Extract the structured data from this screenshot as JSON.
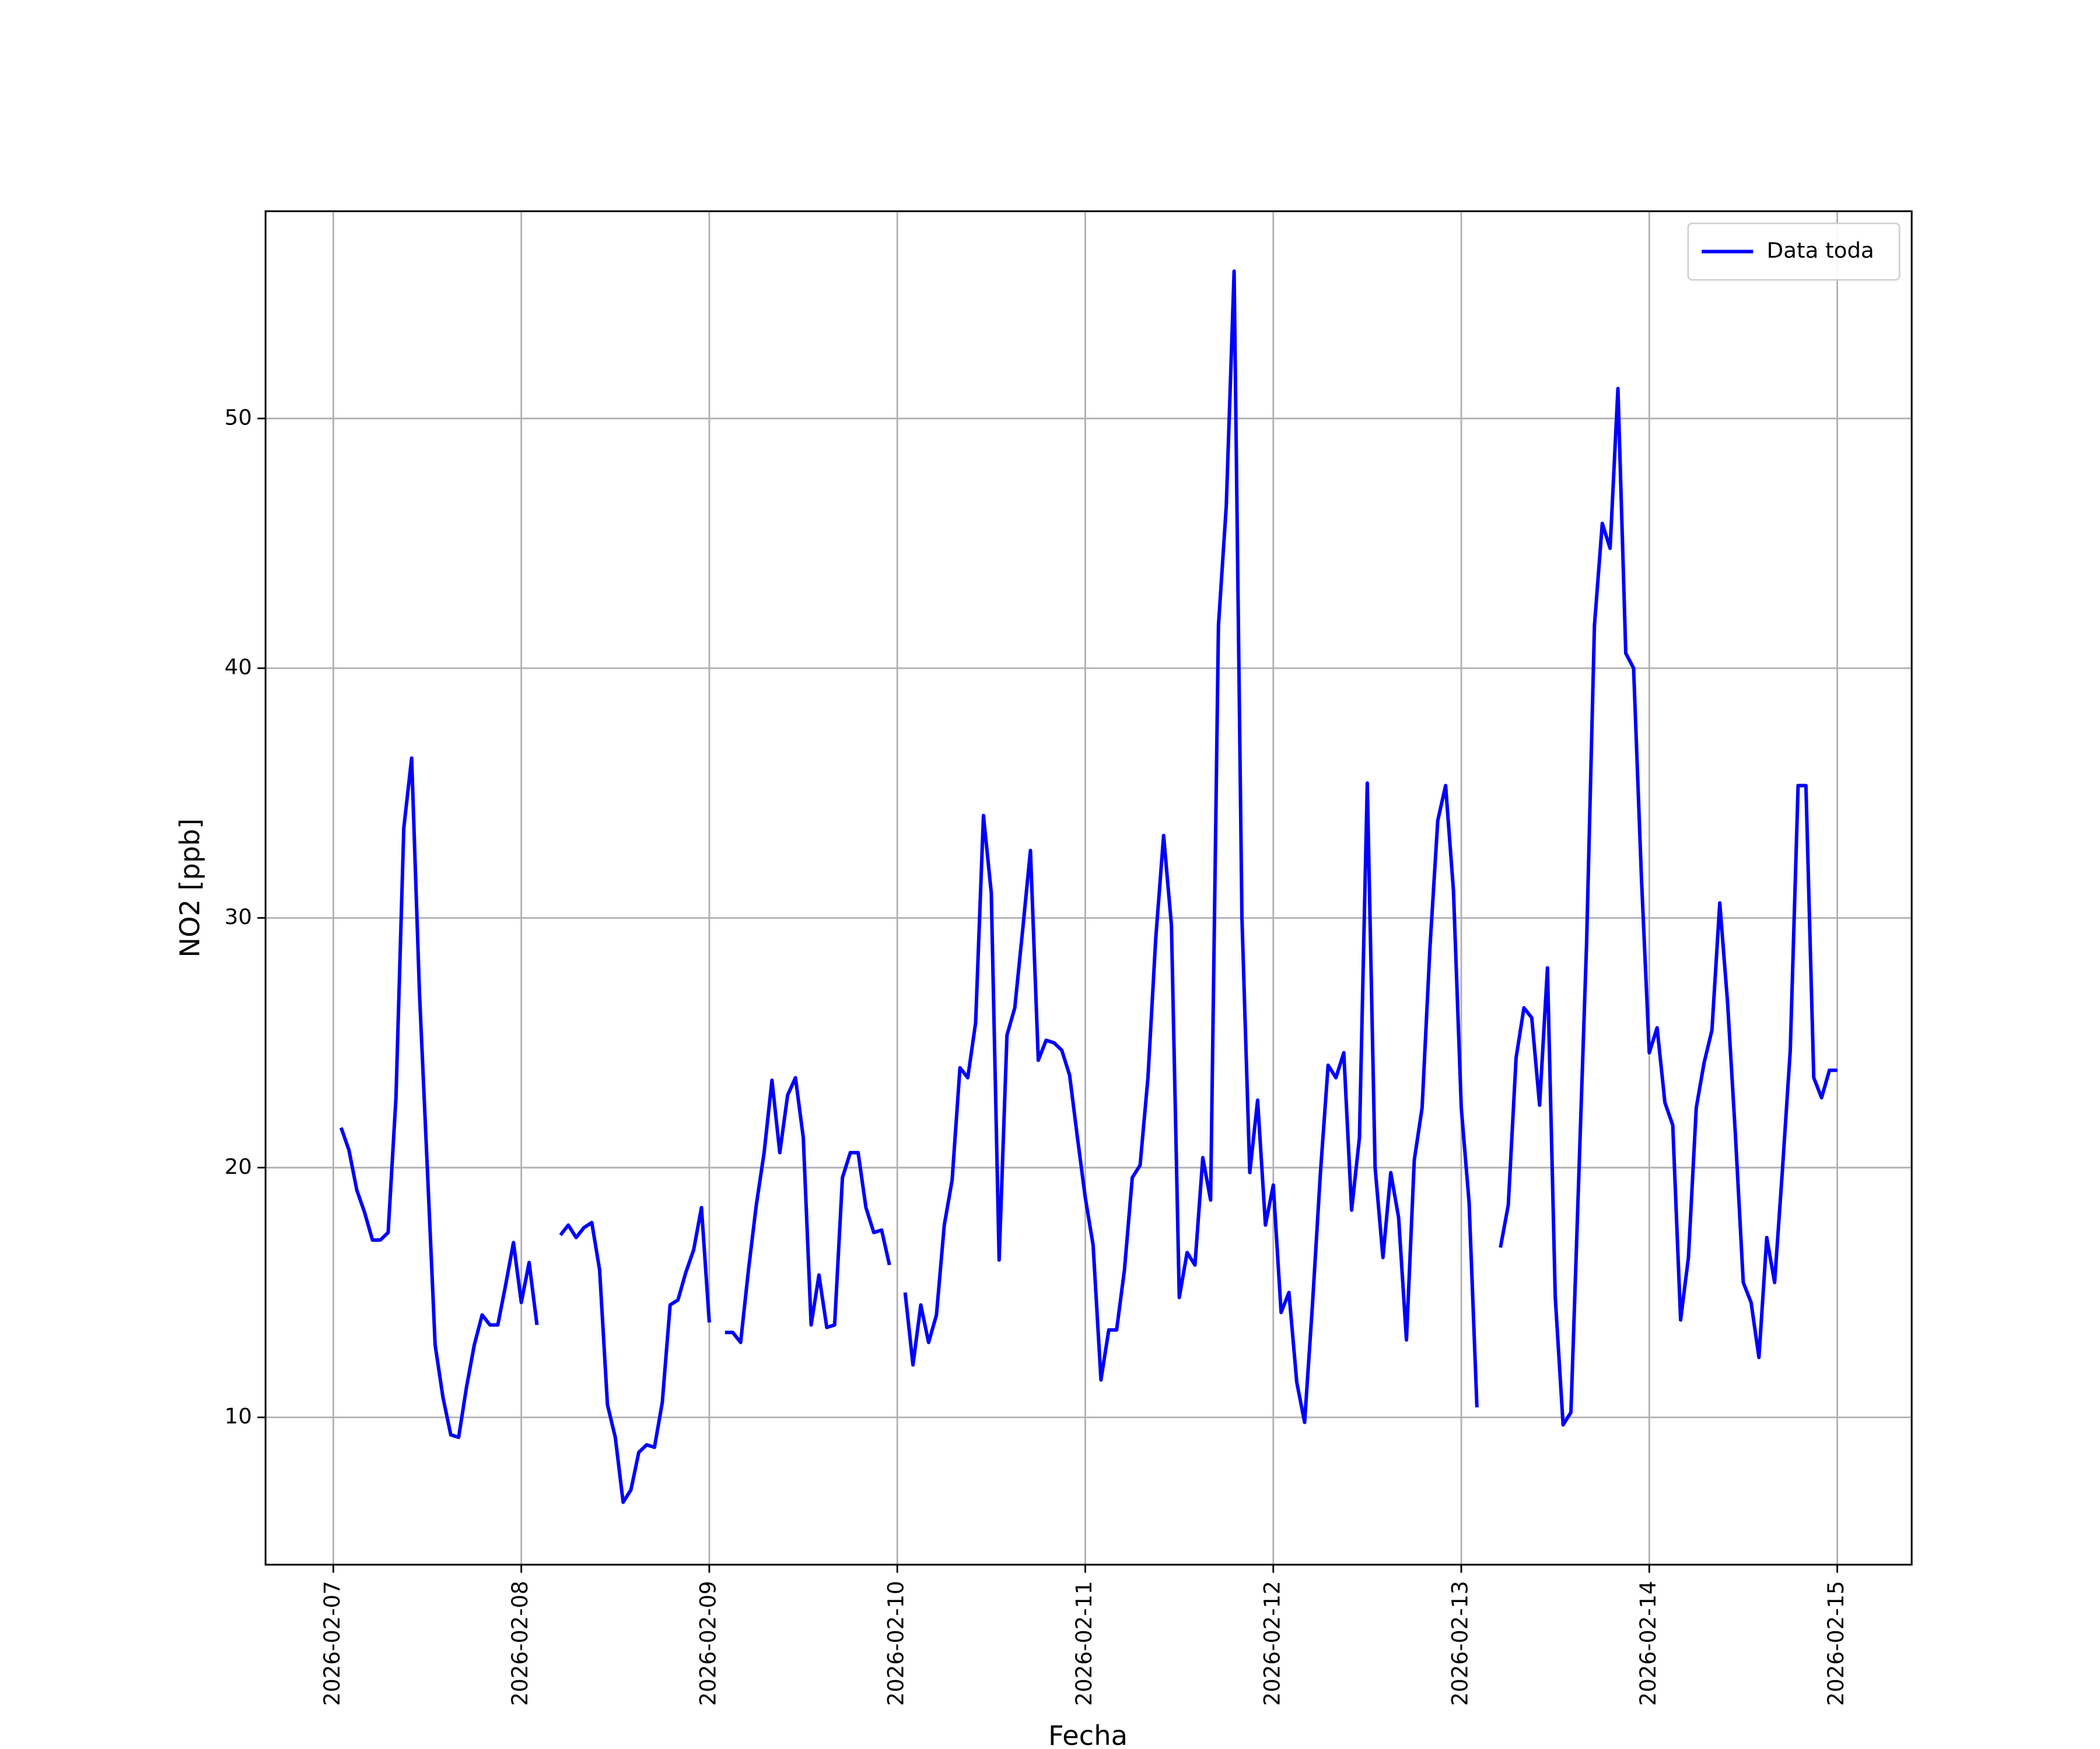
{
  "chart_data": {
    "type": "line",
    "xlabel": "Fecha",
    "ylabel": "NO2 [ppb]",
    "legend": "upper right",
    "grid": true,
    "xlim": [
      "2026-02-06T15:21",
      "2026-02-15T09:30"
    ],
    "xticks": [
      "2026-02-07",
      "2026-02-08",
      "2026-02-09",
      "2026-02-10",
      "2026-02-11",
      "2026-02-12",
      "2026-02-13",
      "2026-02-14",
      "2026-02-15"
    ],
    "ylim": [
      4.1,
      58.3
    ],
    "yticks": [
      10,
      20,
      30,
      40,
      50
    ],
    "x": [
      "2026-02-07T01:00",
      "2026-02-07T02:00",
      "2026-02-07T03:00",
      "2026-02-07T04:00",
      "2026-02-07T05:00",
      "2026-02-07T06:00",
      "2026-02-07T07:00",
      "2026-02-07T08:00",
      "2026-02-07T09:00",
      "2026-02-07T10:00",
      "2026-02-07T11:00",
      "2026-02-07T12:00",
      "2026-02-07T13:00",
      "2026-02-07T14:00",
      "2026-02-07T15:00",
      "2026-02-07T16:00",
      "2026-02-07T17:00",
      "2026-02-07T18:00",
      "2026-02-07T19:00",
      "2026-02-07T20:00",
      "2026-02-07T21:00",
      "2026-02-07T22:00",
      "2026-02-07T23:00",
      "2026-02-08T00:00",
      "2026-02-08T01:00",
      "2026-02-08T02:00",
      "2026-02-08T03:00",
      "2026-02-08T04:00",
      "2026-02-08T05:00",
      "2026-02-08T06:00",
      "2026-02-08T07:00",
      "2026-02-08T08:00",
      "2026-02-08T09:00",
      "2026-02-08T10:00",
      "2026-02-08T11:00",
      "2026-02-08T12:00",
      "2026-02-08T13:00",
      "2026-02-08T14:00",
      "2026-02-08T15:00",
      "2026-02-08T16:00",
      "2026-02-08T17:00",
      "2026-02-08T18:00",
      "2026-02-08T19:00",
      "2026-02-08T20:00",
      "2026-02-08T21:00",
      "2026-02-08T22:00",
      "2026-02-08T23:00",
      "2026-02-09T00:00",
      "2026-02-09T01:00",
      "2026-02-09T02:00",
      "2026-02-09T03:00",
      "2026-02-09T04:00",
      "2026-02-09T05:00",
      "2026-02-09T06:00",
      "2026-02-09T07:00",
      "2026-02-09T08:00",
      "2026-02-09T09:00",
      "2026-02-09T10:00",
      "2026-02-09T11:00",
      "2026-02-09T12:00",
      "2026-02-09T13:00",
      "2026-02-09T14:00",
      "2026-02-09T15:00",
      "2026-02-09T16:00",
      "2026-02-09T17:00",
      "2026-02-09T18:00",
      "2026-02-09T19:00",
      "2026-02-09T20:00",
      "2026-02-09T21:00",
      "2026-02-09T22:00",
      "2026-02-09T23:00",
      "2026-02-10T00:00",
      "2026-02-10T01:00",
      "2026-02-10T02:00",
      "2026-02-10T03:00",
      "2026-02-10T04:00",
      "2026-02-10T05:00",
      "2026-02-10T06:00",
      "2026-02-10T07:00",
      "2026-02-10T08:00",
      "2026-02-10T09:00",
      "2026-02-10T10:00",
      "2026-02-10T11:00",
      "2026-02-10T12:00",
      "2026-02-10T13:00",
      "2026-02-10T14:00",
      "2026-02-10T15:00",
      "2026-02-10T16:00",
      "2026-02-10T17:00",
      "2026-02-10T18:00",
      "2026-02-10T19:00",
      "2026-02-10T20:00",
      "2026-02-10T21:00",
      "2026-02-10T22:00",
      "2026-02-10T23:00",
      "2026-02-11T00:00",
      "2026-02-11T01:00",
      "2026-02-11T02:00",
      "2026-02-11T03:00",
      "2026-02-11T04:00",
      "2026-02-11T05:00",
      "2026-02-11T06:00",
      "2026-02-11T07:00",
      "2026-02-11T08:00",
      "2026-02-11T09:00",
      "2026-02-11T10:00",
      "2026-02-11T11:00",
      "2026-02-11T12:00",
      "2026-02-11T13:00",
      "2026-02-11T14:00",
      "2026-02-11T15:00",
      "2026-02-11T16:00",
      "2026-02-11T17:00",
      "2026-02-11T18:00",
      "2026-02-11T19:00",
      "2026-02-11T20:00",
      "2026-02-11T21:00",
      "2026-02-11T22:00",
      "2026-02-11T23:00",
      "2026-02-12T00:00",
      "2026-02-12T01:00",
      "2026-02-12T02:00",
      "2026-02-12T03:00",
      "2026-02-12T04:00",
      "2026-02-12T05:00",
      "2026-02-12T06:00",
      "2026-02-12T07:00",
      "2026-02-12T08:00",
      "2026-02-12T09:00",
      "2026-02-12T10:00",
      "2026-02-12T11:00",
      "2026-02-12T12:00",
      "2026-02-12T13:00",
      "2026-02-12T14:00",
      "2026-02-12T15:00",
      "2026-02-12T16:00",
      "2026-02-12T17:00",
      "2026-02-12T18:00",
      "2026-02-12T19:00",
      "2026-02-12T20:00",
      "2026-02-12T21:00",
      "2026-02-12T22:00",
      "2026-02-12T23:00",
      "2026-02-13T00:00",
      "2026-02-13T01:00",
      "2026-02-13T02:00",
      "2026-02-13T03:00",
      "2026-02-13T04:00",
      "2026-02-13T05:00",
      "2026-02-13T06:00",
      "2026-02-13T07:00",
      "2026-02-13T08:00",
      "2026-02-13T09:00",
      "2026-02-13T10:00",
      "2026-02-13T11:00",
      "2026-02-13T12:00",
      "2026-02-13T13:00",
      "2026-02-13T14:00",
      "2026-02-13T15:00",
      "2026-02-13T16:00",
      "2026-02-13T17:00",
      "2026-02-13T18:00",
      "2026-02-13T19:00",
      "2026-02-13T20:00",
      "2026-02-13T21:00",
      "2026-02-13T22:00",
      "2026-02-13T23:00",
      "2026-02-14T00:00",
      "2026-02-14T01:00",
      "2026-02-14T02:00",
      "2026-02-14T03:00",
      "2026-02-14T04:00",
      "2026-02-14T05:00",
      "2026-02-14T06:00",
      "2026-02-14T07:00",
      "2026-02-14T08:00",
      "2026-02-14T09:00",
      "2026-02-14T10:00",
      "2026-02-14T11:00",
      "2026-02-14T12:00",
      "2026-02-14T13:00",
      "2026-02-14T14:00",
      "2026-02-14T15:00",
      "2026-02-14T16:00",
      "2026-02-14T17:00",
      "2026-02-14T18:00",
      "2026-02-14T19:00",
      "2026-02-14T20:00",
      "2026-02-14T21:00",
      "2026-02-14T22:00",
      "2026-02-14T23:00",
      "2026-02-15T00:00"
    ],
    "series": [
      {
        "name": "Data toda",
        "color": "#0000ff",
        "values": [
          21.6,
          20.7,
          19.1,
          18.2,
          17.1,
          17.1,
          17.4,
          22.8,
          33.6,
          36.4,
          27,
          20,
          12.9,
          10.8,
          9.3,
          9.2,
          11.2,
          12.9,
          14.1,
          13.7,
          13.7,
          15.3,
          17,
          14.6,
          16.2,
          13.7,
          null,
          null,
          17.3,
          17.7,
          17.2,
          17.6,
          17.8,
          15.9,
          10.5,
          9.2,
          6.6,
          7.1,
          8.6,
          8.9,
          8.8,
          10.6,
          14.5,
          14.7,
          15.8,
          16.7,
          18.4,
          13.8,
          null,
          13.4,
          13.4,
          13,
          15.9,
          18.5,
          20.6,
          23.5,
          20.6,
          22.9,
          23.6,
          21.2,
          13.7,
          15.7,
          13.6,
          13.7,
          19.6,
          20.6,
          20.6,
          18.4,
          17.4,
          17.5,
          16.1,
          null,
          15,
          12.1,
          14.5,
          13,
          14.1,
          17.7,
          19.5,
          24,
          23.6,
          25.8,
          34.1,
          31,
          16.3,
          25.3,
          26.4,
          29.5,
          32.7,
          24.3,
          25.1,
          25,
          24.7,
          23.7,
          21.2,
          18.8,
          16.9,
          11.5,
          13.5,
          13.5,
          15.9,
          19.6,
          20.1,
          23.6,
          29.2,
          33.3,
          29.7,
          14.8,
          16.6,
          16.1,
          20.4,
          18.7,
          41.7,
          46.5,
          55.9,
          30,
          19.8,
          22.7,
          17.7,
          19.3,
          14.2,
          15,
          11.4,
          9.8,
          14.5,
          19.7,
          24.1,
          23.6,
          24.6,
          18.3,
          21.2,
          35.4,
          20,
          16.4,
          19.8,
          18,
          13.1,
          20.3,
          22.4,
          28.8,
          33.9,
          35.3,
          31.1,
          22.4,
          18.6,
          10.4,
          null,
          null,
          16.8,
          18.5,
          24.4,
          26.4,
          26,
          22.5,
          28,
          14.8,
          9.7,
          10.2,
          19.6,
          29,
          41.7,
          45.8,
          44.8,
          51.2,
          40.6,
          40,
          31.6,
          24.6,
          25.6,
          22.6,
          21.7,
          13.9,
          16.4,
          22.4,
          24.2,
          25.5,
          30.6,
          26.6,
          21.3,
          15.4,
          14.6,
          12.4,
          17.2,
          15.4,
          19.9,
          24.7,
          35.3,
          35.3,
          23.6,
          22.8,
          23.9,
          23.9
        ]
      }
    ]
  }
}
